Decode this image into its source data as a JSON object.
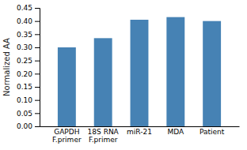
{
  "chart_data": {
    "type": "bar",
    "categories": [
      "GAPDH\nF.primer",
      "18S RNA\nF.primer",
      "miR-21",
      "MDA",
      "Patient"
    ],
    "values": [
      0.3,
      0.335,
      0.405,
      0.415,
      0.4
    ],
    "ylabel": "Normalized AA",
    "ylim": [
      0,
      0.45
    ],
    "yticks": [
      {
        "value": 0,
        "label": "0.00"
      },
      0.05,
      {
        "value": 0.1,
        "label": "0.10"
      },
      0.15,
      {
        "value": 0.2,
        "label": "0.20"
      },
      0.25,
      {
        "value": 0.3,
        "label": "0.30"
      },
      0.35,
      {
        "value": 0.4,
        "label": "0.40"
      },
      0.45
    ],
    "grid": false
  }
}
